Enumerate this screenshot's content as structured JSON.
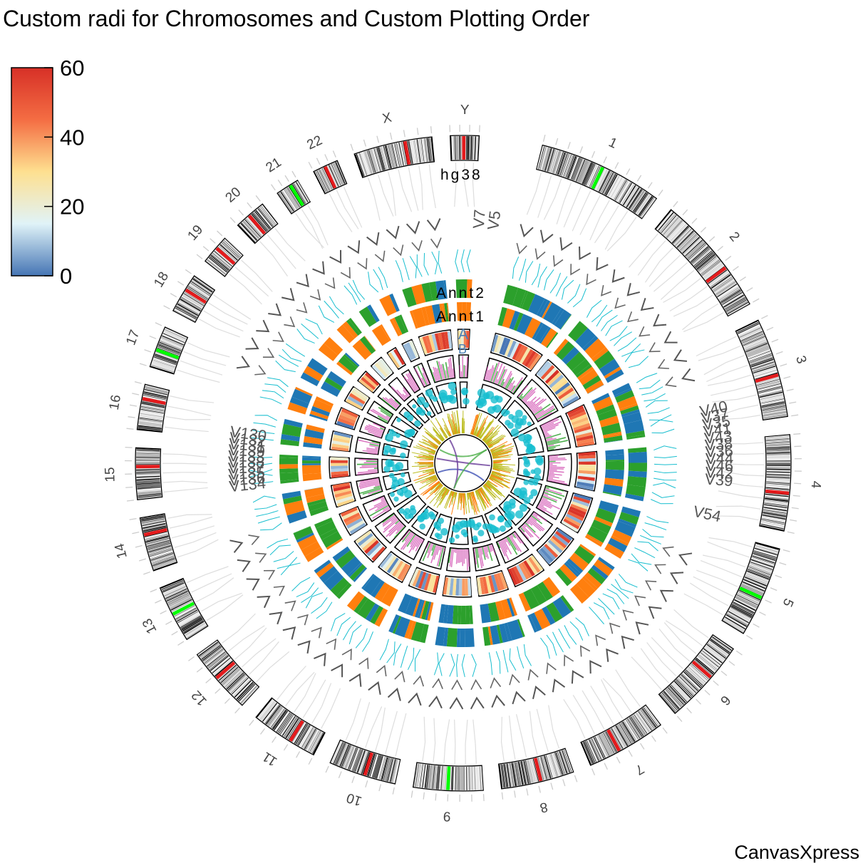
{
  "title": "Custom radi for Chromosomes and Custom Plotting Order",
  "brand": "CanvasXpress",
  "colors": {
    "blue": "#1f77b4",
    "orange": "#ff7f0e",
    "green": "#2ca02c",
    "cyan": "#17becf",
    "magenta": "#d660b9",
    "olive": "#bcbd22",
    "band_red": "#e41a1c",
    "band_green": "#00ff00",
    "link_purple": "#6a3d9a",
    "link_green": "#4daf4a",
    "link_blue": "#3f51b5"
  },
  "legend": {
    "min": 0,
    "max": 60,
    "ticks": [
      "60",
      "40",
      "20",
      "0"
    ],
    "colors": [
      "#4575b4",
      "#e0f3f8",
      "#fee090",
      "#f46d43",
      "#d73027"
    ]
  },
  "chart_data": {
    "type": "circos",
    "genome": "hg38",
    "chromosomes": [
      "1",
      "2",
      "3",
      "4",
      "5",
      "6",
      "7",
      "8",
      "9",
      "10",
      "11",
      "12",
      "13",
      "14",
      "15",
      "16",
      "17",
      "18",
      "19",
      "20",
      "21",
      "22",
      "X",
      "Y"
    ],
    "chromosome_lengths": [
      248,
      242,
      198,
      190,
      181,
      171,
      159,
      145,
      138,
      134,
      135,
      133,
      114,
      107,
      102,
      90,
      83,
      80,
      59,
      64,
      47,
      51,
      156,
      57
    ],
    "tracks": [
      "Annt2",
      "Annt1",
      "A",
      "B"
    ],
    "heatmap_range": [
      0,
      60
    ],
    "label_groups": {
      "left": [
        "V134",
        "V136",
        "V135",
        "V137",
        "V138",
        "V133",
        "V139",
        "V131",
        "V132",
        "V130"
      ],
      "right": [
        "V40",
        "V37",
        "V35",
        "V41",
        "V43",
        "V38",
        "V36",
        "V44",
        "V46",
        "V42",
        "V39"
      ],
      "top": [
        "V7",
        "V5"
      ],
      "lower_right": [
        "V54"
      ]
    }
  }
}
